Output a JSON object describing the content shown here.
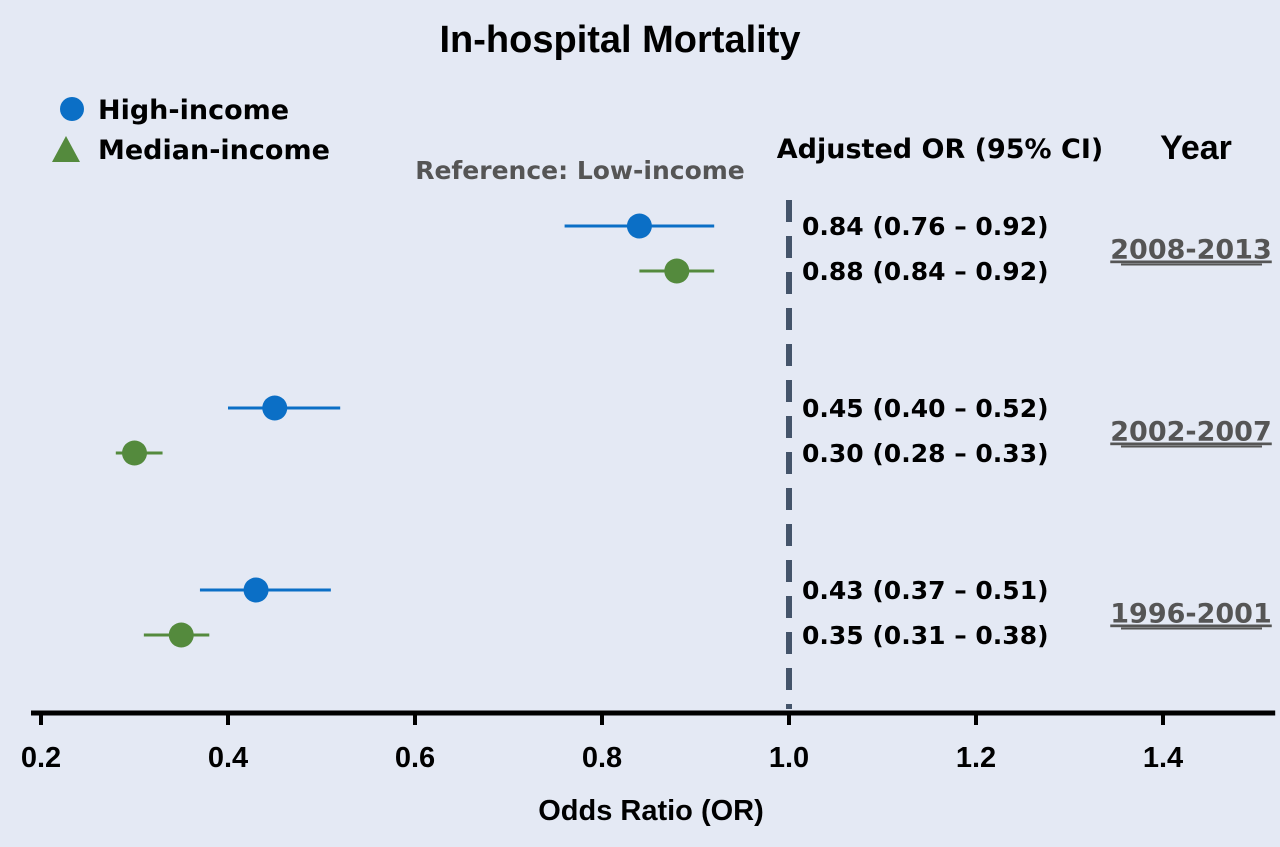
{
  "chart_data": {
    "type": "scatter",
    "subtype": "forest-plot",
    "title": "In-hospital Mortality",
    "xlabel": "Odds Ratio (OR)",
    "ylabel": "",
    "xlim": [
      0.2,
      1.52
    ],
    "xticks": [
      "0.2",
      "0.4",
      "0.6",
      "0.8",
      "1.0",
      "1.2",
      "1.4"
    ],
    "reference_line": 1.0,
    "reference_label": "Reference: Low-income",
    "ci_header": "Adjusted OR (95% CI)",
    "year_header": "Year",
    "legend_position": "top-left",
    "colors": {
      "High-income": "#0b6fc6",
      "Median-income": "#548a3d",
      "reference_line": "#44546a",
      "axis": "#000000",
      "background": "#e4e9f4"
    },
    "series": [
      {
        "name": "High-income",
        "marker": "circle",
        "points": [
          {
            "period": "2008-2013",
            "or": 0.84,
            "lo": 0.76,
            "hi": 0.92,
            "text": "0.84 (0.76 – 0.92)"
          },
          {
            "period": "2002-2007",
            "or": 0.45,
            "lo": 0.4,
            "hi": 0.52,
            "text": "0.45 (0.40 – 0.52)"
          },
          {
            "period": "1996-2001",
            "or": 0.43,
            "lo": 0.37,
            "hi": 0.51,
            "text": "0.43 (0.37 – 0.51)"
          }
        ]
      },
      {
        "name": "Median-income",
        "marker": "triangle",
        "points": [
          {
            "period": "2008-2013",
            "or": 0.88,
            "lo": 0.84,
            "hi": 0.92,
            "text": "0.88 (0.84 – 0.92)"
          },
          {
            "period": "2002-2007",
            "or": 0.3,
            "lo": 0.28,
            "hi": 0.33,
            "text": "0.30 (0.28 – 0.33)"
          },
          {
            "period": "1996-2001",
            "or": 0.35,
            "lo": 0.31,
            "hi": 0.38,
            "text": "0.35 (0.31 – 0.38)"
          }
        ]
      }
    ],
    "periods": [
      "2008-2013",
      "2002-2007",
      "1996-2001"
    ]
  }
}
